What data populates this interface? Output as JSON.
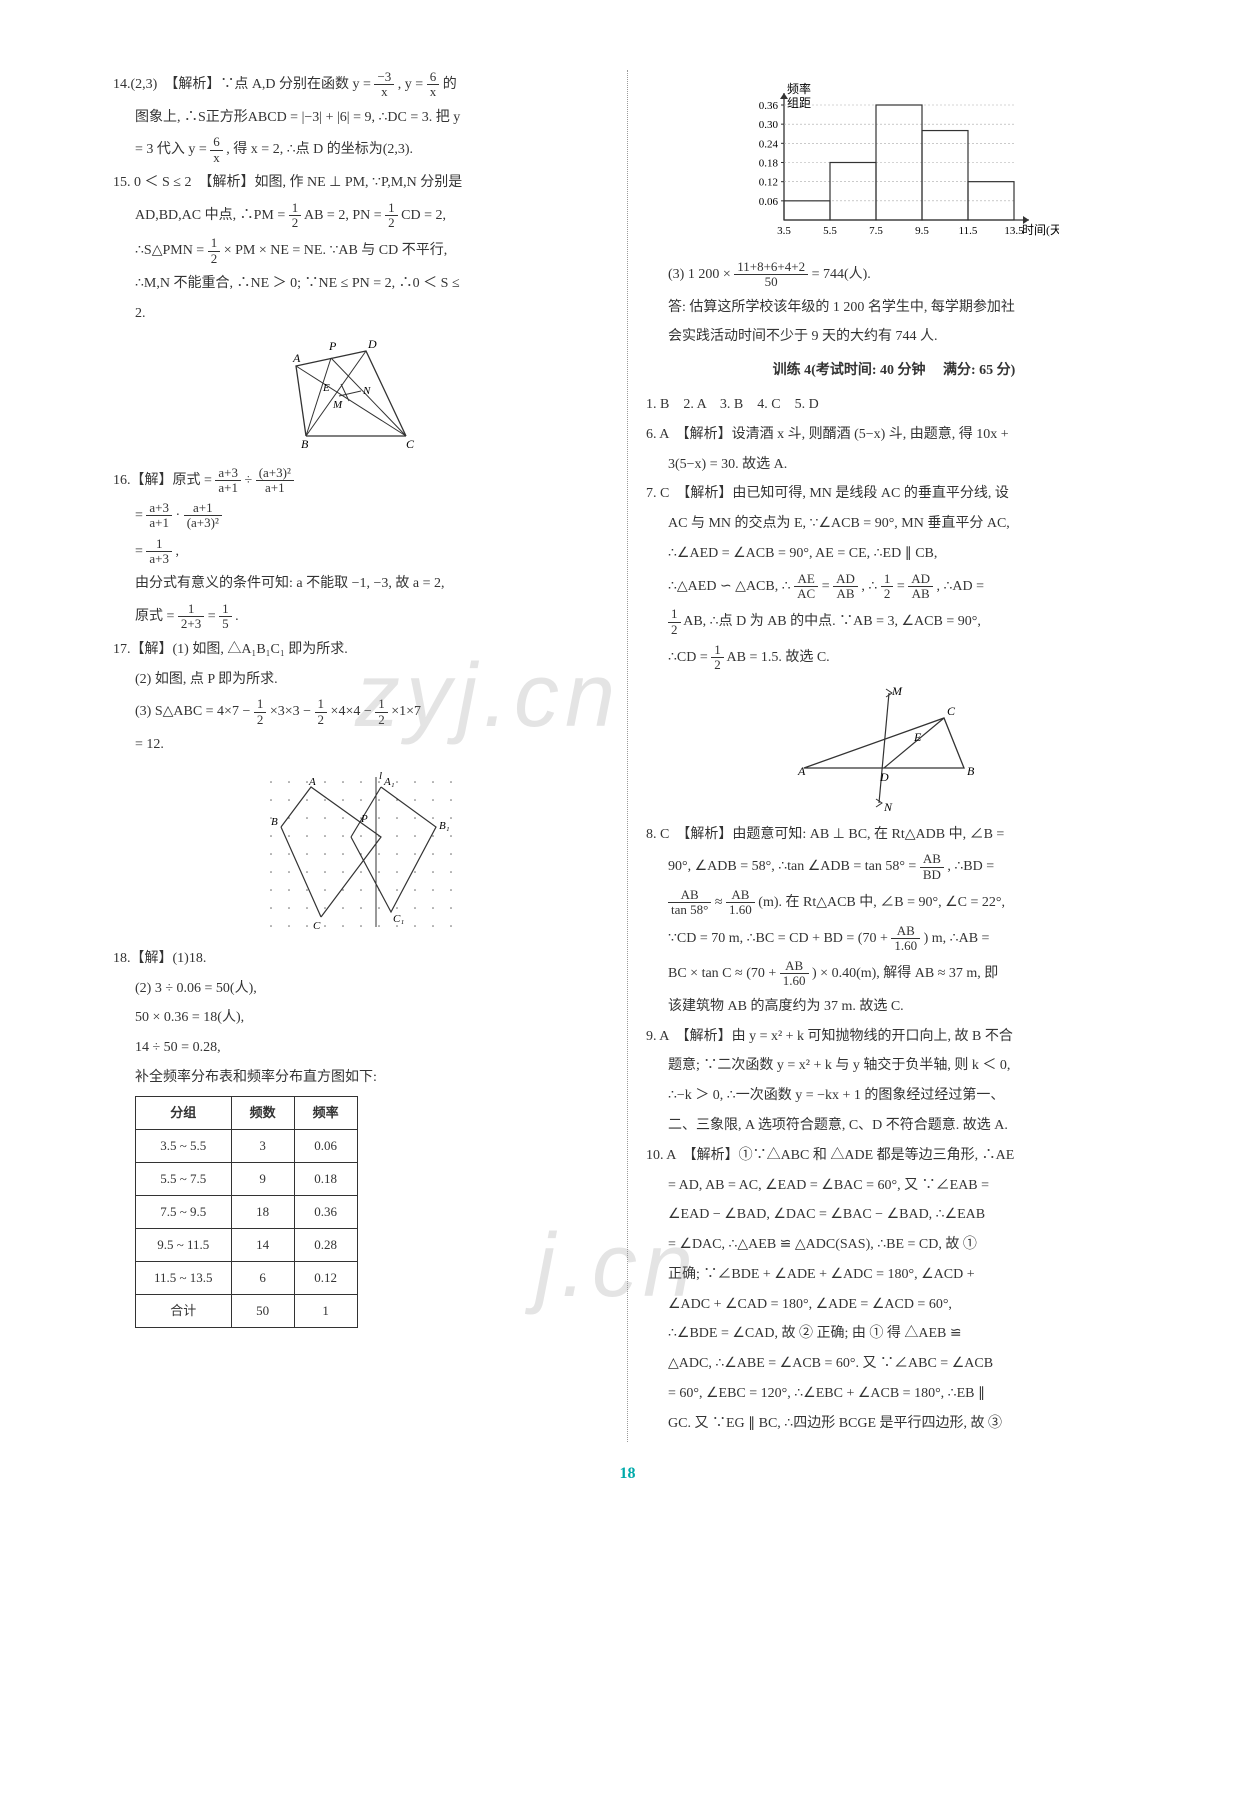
{
  "left": {
    "q14": {
      "lead": "14.(2,3)　【解析】∵点 A,D 分别在函数 y = ",
      "f1n": "−3",
      "f1d": "x",
      "mid1": ", y = ",
      "f2n": "6",
      "f2d": "x",
      "mid2": " 的",
      "l2a": "图象上, ∴S正方形ABCD = |−3| + |6| = 9, ∴DC = 3. 把 y",
      "l3a": "= 3 代入 y = ",
      "f3n": "6",
      "f3d": "x",
      "l3b": ", 得 x = 2, ∴点 D 的坐标为(2,3)."
    },
    "q15": {
      "l1": "15. 0 ＜ S ≤ 2　【解析】如图, 作 NE ⊥ PM, ∵P,M,N 分别是",
      "l2a": "AD,BD,AC 中点, ∴PM = ",
      "f1n": "1",
      "f1d": "2",
      "l2b": "AB = 2, PN = ",
      "f2n": "1",
      "f2d": "2",
      "l2c": "CD = 2,",
      "l3a": "∴S△PMN = ",
      "f3n": "1",
      "f3d": "2",
      "l3b": " × PM × NE = NE. ∵AB 与 CD 不平行,",
      "l4": "∴M,N 不能重合, ∴NE ＞ 0; ∵NE ≤ PN = 2, ∴0 ＜ S ≤",
      "l5": "2."
    },
    "q16": {
      "l1a": "16.【解】原式 = ",
      "f1n": "a+3",
      "f1d": "a+1",
      "l1b": " ÷ ",
      "f2n": "(a+3)²",
      "f2d": "a+1",
      "l2a": "= ",
      "f3n": "a+3",
      "f3d": "a+1",
      "l2b": " · ",
      "f4n": "a+1",
      "f4d": "(a+3)²",
      "l3a": "= ",
      "f5n": "1",
      "f5d": "a+3",
      "l3b": ",",
      "l4": "由分式有意义的条件可知: a 不能取 −1, −3, 故 a = 2,",
      "l5a": "原式 = ",
      "f6n": "1",
      "f6d": "2+3",
      "l5b": " = ",
      "f7n": "1",
      "f7d": "5",
      "l5c": "."
    },
    "q17": {
      "l1": "17.【解】(1) 如图, △A₁B₁C₁ 即为所求.",
      "l2": "(2) 如图, 点 P 即为所求.",
      "l3a": "(3) S△ABC = 4×7 − ",
      "f1n": "1",
      "f1d": "2",
      "l3b": "×3×3 − ",
      "f2n": "1",
      "f2d": "2",
      "l3c": "×4×4 − ",
      "f3n": "1",
      "f3d": "2",
      "l3d": "×1×7",
      "l4": "= 12."
    },
    "q18": {
      "l1": "18.【解】(1)18.",
      "l2": "(2) 3 ÷ 0.06 = 50(人),",
      "l3": "50 × 0.36 = 18(人),",
      "l4": "14 ÷ 50 = 0.28,",
      "l5": "补全频率分布表和频率分布直方图如下:",
      "table": {
        "headers": [
          "分组",
          "频数",
          "频率"
        ],
        "rows": [
          [
            "3.5 ~ 5.5",
            "3",
            "0.06"
          ],
          [
            "5.5 ~ 7.5",
            "9",
            "0.18"
          ],
          [
            "7.5 ~ 9.5",
            "18",
            "0.36"
          ],
          [
            "9.5 ~ 11.5",
            "14",
            "0.28"
          ],
          [
            "11.5 ~ 13.5",
            "6",
            "0.12"
          ],
          [
            "合计",
            "50",
            "1"
          ]
        ]
      }
    }
  },
  "right": {
    "histogram": {
      "ylabel": "频率\n组距",
      "xlabel": "时间(天)",
      "xticks": [
        "3.5",
        "5.5",
        "7.5",
        "9.5",
        "11.5",
        "13.5"
      ],
      "yticks": [
        "0.06",
        "0.12",
        "0.18",
        "0.24",
        "0.30",
        "0.36"
      ],
      "heights": [
        0.06,
        0.18,
        0.36,
        0.28,
        0.12
      ],
      "color": "#333",
      "bg": "#fff"
    },
    "q18c": {
      "l1a": "(3) 1 200 × ",
      "fn": "11+8+6+4+2",
      "fd": "50",
      "l1b": " = 744(人).",
      "l2": "答: 估算这所学校该年级的 1 200 名学生中, 每学期参加社",
      "l3": "会实践活动时间不少于 9 天的大约有 744 人."
    },
    "train4": {
      "title": "训练 4(考试时间: 40 分钟　 满分: 65 分)",
      "ans": "1. B　2. A　3. B　4. C　5. D"
    },
    "q6": {
      "l1": "6. A　【解析】设清酒 x 斗, 则醑酒 (5−x) 斗, 由题意, 得 10x +",
      "l2": "3(5−x) = 30. 故选 A."
    },
    "q7": {
      "l1": "7. C　【解析】由已知可得, MN 是线段 AC 的垂直平分线, 设",
      "l2": "AC 与 MN 的交点为 E, ∵∠ACB = 90°, MN 垂直平分 AC,",
      "l3": "∴∠AED = ∠ACB = 90°, AE = CE, ∴ED ∥ CB,",
      "l4a": "∴△AED ∽ △ACB, ∴",
      "f1n": "AE",
      "f1d": "AC",
      "l4b": " = ",
      "f2n": "AD",
      "f2d": "AB",
      "l4c": ", ∴",
      "f3n": "1",
      "f3d": "2",
      "l4d": " = ",
      "f4n": "AD",
      "f4d": "AB",
      "l4e": ", ∴AD =",
      "l5a": "",
      "f5n": "1",
      "f5d": "2",
      "l5b": "AB, ∴点 D 为 AB 的中点. ∵AB = 3, ∠ACB = 90°,",
      "l6a": "∴CD = ",
      "f6n": "1",
      "f6d": "2",
      "l6b": "AB = 1.5. 故选 C."
    },
    "q8": {
      "l1": "8. C　【解析】由题意可知: AB ⊥ BC, 在 Rt△ADB 中, ∠B =",
      "l2a": "90°, ∠ADB = 58°, ∴tan ∠ADB = tan 58° = ",
      "f1n": "AB",
      "f1d": "BD",
      "l2b": ", ∴BD =",
      "l3a": "",
      "f2n": "AB",
      "f2d": "tan 58°",
      "l3b": " ≈ ",
      "f3n": "AB",
      "f3d": "1.60",
      "l3c": "(m). 在 Rt△ACB 中, ∠B = 90°, ∠C = 22°,",
      "l4a": "∵CD = 70 m, ∴BC = CD + BD = (70 + ",
      "f4n": "AB",
      "f4d": "1.60",
      "l4b": ") m, ∴AB =",
      "l5a": "BC × tan C ≈ (70 + ",
      "f5n": "AB",
      "f5d": "1.60",
      "l5b": ") × 0.40(m), 解得 AB ≈ 37 m, 即",
      "l6": "该建筑物 AB 的高度约为 37 m. 故选 C."
    },
    "q9": {
      "l1": "9. A　【解析】由 y = x² + k 可知抛物线的开口向上, 故 B 不合",
      "l2": "题意; ∵二次函数 y = x² + k 与 y 轴交于负半轴, 则 k ＜ 0,",
      "l3": "∴−k ＞ 0, ∴一次函数 y = −kx + 1 的图象经过经过第一、",
      "l4": "二、三象限, A 选项符合题意, C、D 不符合题意. 故选 A."
    },
    "q10": {
      "l1": "10. A　【解析】①∵△ABC 和 △ADE 都是等边三角形, ∴AE",
      "l2": "= AD, AB = AC, ∠EAD = ∠BAC = 60°, 又 ∵∠EAB =",
      "l3": "∠EAD − ∠BAD, ∠DAC = ∠BAC − ∠BAD, ∴∠EAB",
      "l4": "= ∠DAC, ∴△AEB ≌ △ADC(SAS), ∴BE = CD, 故 ①",
      "l5": "正确; ∵∠BDE + ∠ADE + ∠ADC = 180°, ∠ACD +",
      "l6": "∠ADC + ∠CAD = 180°, ∠ADE = ∠ACD = 60°,",
      "l7": "∴∠BDE = ∠CAD, 故 ② 正确; 由 ① 得 △AEB ≌",
      "l8": "△ADC, ∴∠ABE = ∠ACB = 60°. 又 ∵∠ABC = ∠ACB",
      "l9": "= 60°, ∠EBC = 120°, ∴∠EBC + ∠ACB = 180°, ∴EB ∥",
      "l10": "GC. 又 ∵EG ∥ BC, ∴四边形 BCGE 是平行四边形, 故 ③"
    }
  },
  "pageNumber": "18",
  "watermarks": {
    "w1": "zyj.cn",
    "w2": "j.cn"
  }
}
